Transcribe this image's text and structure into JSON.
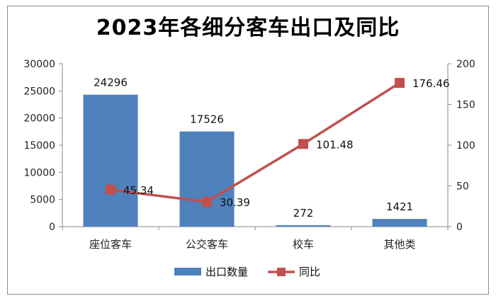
{
  "chart_data": {
    "type": "bar",
    "title": "2023年各细分客车出口及同比",
    "categories": [
      "座位客车",
      "公交客车",
      "校车",
      "其他类"
    ],
    "series": [
      {
        "name": "出口数量",
        "type": "bar",
        "axis": "left",
        "color": "#4f81bd",
        "values": [
          24296,
          17526,
          272,
          1421
        ]
      },
      {
        "name": "同比",
        "type": "line",
        "axis": "right",
        "color": "#c0504d",
        "values": [
          45.34,
          30.39,
          101.48,
          176.46
        ]
      }
    ],
    "y_left": {
      "range": [
        0,
        30000
      ],
      "ticks": [
        0,
        5000,
        10000,
        15000,
        20000,
        25000,
        30000
      ]
    },
    "y_right": {
      "range": [
        0,
        200
      ],
      "ticks": [
        0,
        50,
        100,
        150,
        200
      ]
    },
    "bar_labels": [
      "24296",
      "17526",
      "272",
      "1421"
    ],
    "line_labels": [
      "45.34",
      "30.39",
      "101.48",
      "176.46"
    ],
    "legend": {
      "position": "bottom",
      "entries": [
        "出口数量",
        "同比"
      ]
    },
    "grid": false
  }
}
